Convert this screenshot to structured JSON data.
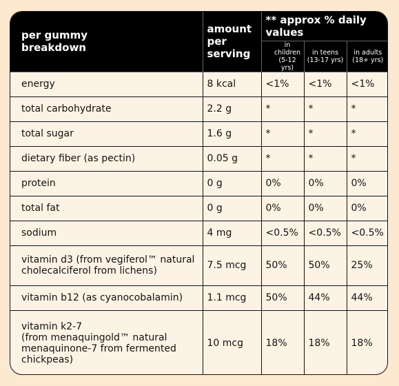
{
  "header": {
    "label_column": "per gummy\nbreakdown",
    "amount_column": "amount\nper\nserving",
    "group": "** approx % daily values",
    "subcolumns": [
      "in children\n(5-12 yrs)",
      "in teens\n(13-17 yrs)",
      "in adults\n(18+ yrs)"
    ]
  },
  "table": {
    "rows": [
      [
        "energy",
        "8 kcal",
        "<1%",
        "<1%",
        "<1%"
      ],
      [
        "total carbohydrate",
        "2.2 g",
        "*",
        "*",
        "*"
      ],
      [
        "total sugar",
        "1.6 g",
        "*",
        "*",
        "*"
      ],
      [
        "dietary fiber (as pectin)",
        "0.05 g",
        "*",
        "*",
        "*"
      ],
      [
        "protein",
        "0 g",
        "0%",
        "0%",
        "0%"
      ],
      [
        "total fat",
        "0 g",
        "0%",
        "0%",
        "0%"
      ],
      [
        "sodium",
        "4 mg",
        "<0.5%",
        "<0.5%",
        "<0.5%"
      ],
      [
        "vitamin d3 (from vegiferol™ natural cholecalciferol from lichens)",
        "7.5 mcg",
        "50%",
        "50%",
        "25%"
      ],
      [
        "vitamin b12 (as cyanocobalamin)",
        "1.1 mcg",
        "50%",
        "44%",
        "44%"
      ],
      [
        "vitamin k2-7\n(from menaquingold™ natural menaquinone-7 from fermented chickpeas)",
        "10 mcg",
        "18%",
        "18%",
        "18%"
      ]
    ]
  }
}
